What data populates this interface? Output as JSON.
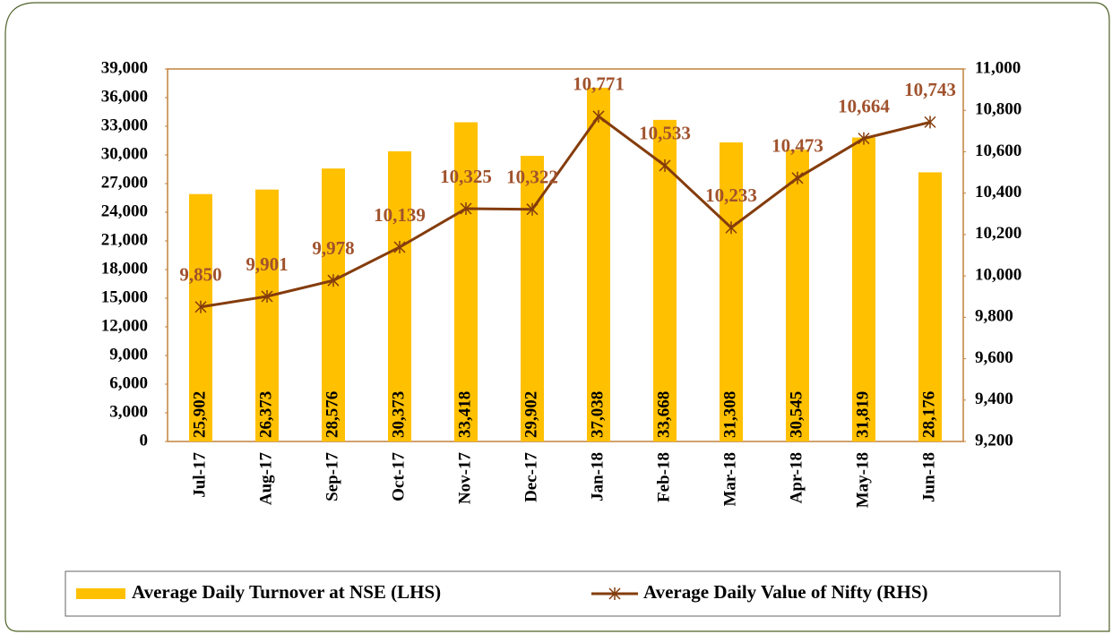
{
  "chart_data": {
    "type": "bar",
    "categories": [
      "Jul-17",
      "Aug-17",
      "Sep-17",
      "Oct-17",
      "Nov-17",
      "Dec-17",
      "Jan-18",
      "Feb-18",
      "Mar-18",
      "Apr-18",
      "May-18",
      "Jun-18"
    ],
    "series": [
      {
        "name": "Average Daily Turnover at NSE (LHS)",
        "type": "bar",
        "color": "#ffc000",
        "values": [
          25902,
          26373,
          28576,
          30373,
          33418,
          29902,
          37038,
          33668,
          31308,
          30545,
          31819,
          28176
        ],
        "value_labels": [
          "25,902",
          "26,373",
          "28,576",
          "30,373",
          "33,418",
          "29,902",
          "37,038",
          "33,668",
          "31,308",
          "30,545",
          "31,819",
          "28,176"
        ]
      },
      {
        "name": "Average Daily Value of Nifty (RHS)",
        "type": "line",
        "axis": "y2",
        "color": "#843c0c",
        "values": [
          9850,
          9901,
          9978,
          10139,
          10325,
          10322,
          10771,
          10533,
          10233,
          10473,
          10664,
          10743
        ],
        "value_labels": [
          "9,850",
          "9,901",
          "9,978",
          "10,139",
          "10,325",
          "10,322",
          "10,771",
          "10,533",
          "10,233",
          "10,473",
          "10,664",
          "10,743"
        ]
      }
    ],
    "ylim": [
      0,
      39000
    ],
    "yticks": [
      0,
      {
        "value": 3000,
        "label": "3,000"
      },
      {
        "value": 6000,
        "label": "6,000"
      },
      {
        "value": 9000,
        "label": "9,000"
      },
      {
        "value": 12000,
        "label": "12,000"
      },
      {
        "value": 15000,
        "label": "15,000"
      },
      {
        "value": 18000,
        "label": "18,000"
      },
      {
        "value": 21000,
        "label": "21,000"
      },
      {
        "value": 24000,
        "label": "24,000"
      },
      {
        "value": 27000,
        "label": "27,000"
      },
      {
        "value": 30000,
        "label": "30,000"
      },
      {
        "value": 33000,
        "label": "33,000"
      },
      {
        "value": 36000,
        "label": "36,000"
      },
      {
        "value": 39000,
        "label": "39,000"
      }
    ],
    "y2lim": [
      9200,
      11000
    ],
    "y2ticks": [
      {
        "value": 9200,
        "label": "9,200"
      },
      {
        "value": 9400,
        "label": "9,400"
      },
      {
        "value": 9600,
        "label": "9,600"
      },
      {
        "value": 9800,
        "label": "9,800"
      },
      {
        "value": 10000,
        "label": "10,000"
      },
      {
        "value": 10200,
        "label": "10,200"
      },
      {
        "value": 10400,
        "label": "10,400"
      },
      {
        "value": 10600,
        "label": "10,600"
      },
      {
        "value": 10800,
        "label": "10,800"
      },
      {
        "value": 11000,
        "label": "11,000"
      }
    ],
    "legend": "bottom"
  }
}
